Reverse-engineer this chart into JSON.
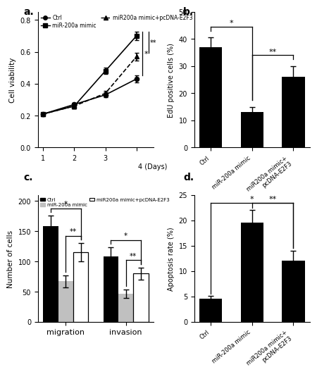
{
  "a": {
    "days": [
      1,
      2,
      3,
      4
    ],
    "ctrl": [
      0.21,
      0.27,
      0.33,
      0.43
    ],
    "ctrl_err": [
      0.01,
      0.01,
      0.015,
      0.02
    ],
    "mimic": [
      0.21,
      0.26,
      0.48,
      0.7
    ],
    "mimic_err": [
      0.01,
      0.015,
      0.02,
      0.025
    ],
    "combo": [
      0.21,
      0.26,
      0.34,
      0.57
    ],
    "combo_err": [
      0.01,
      0.015,
      0.015,
      0.025
    ],
    "ylabel": "Cell viability",
    "xlabel": "(Days)",
    "ylim": [
      0.0,
      0.85
    ],
    "yticks": [
      0.0,
      0.2,
      0.4,
      0.6,
      0.8
    ],
    "legend_ctrl": "Ctrl",
    "legend_mimic": "miR-200a mimic",
    "legend_combo": "miR200a mimic+pcDNA-E2F3"
  },
  "b": {
    "categories": [
      "Ctrl",
      "miR-200a mimic",
      "miR200a mimic+\npcDNA-E2F3"
    ],
    "values": [
      37,
      13,
      26
    ],
    "errors": [
      3.5,
      2.0,
      4.0
    ],
    "ylabel": "EdU positive cells (%)",
    "ylim": [
      0,
      50
    ],
    "yticks": [
      0,
      10,
      20,
      30,
      40,
      50
    ]
  },
  "c": {
    "groups": [
      "migration",
      "invasion"
    ],
    "ctrl": [
      158,
      108
    ],
    "ctrl_err": [
      18,
      15
    ],
    "mimic": [
      67,
      46
    ],
    "mimic_err": [
      10,
      7
    ],
    "combo": [
      115,
      80
    ],
    "combo_err": [
      15,
      10
    ],
    "ylabel": "Number of cells",
    "ylim": [
      0,
      210
    ],
    "yticks": [
      0,
      50,
      100,
      150,
      200
    ],
    "legend_ctrl": "Ctrl",
    "legend_mimic": "miR-200a mimic",
    "legend_combo": "miR200a mimic+pcDNA-E2F3"
  },
  "d": {
    "categories": [
      "Ctrl",
      "miR-200a mimic",
      "miR200a mimic+\npcDNA-E2F3"
    ],
    "values": [
      4.5,
      19.5,
      12
    ],
    "errors": [
      0.6,
      2.5,
      2.0
    ],
    "ylabel": "Apoptosis rate (%)",
    "ylim": [
      0,
      25
    ],
    "yticks": [
      0,
      5,
      10,
      15,
      20,
      25
    ]
  },
  "panel_labels": [
    "a.",
    "b.",
    "c.",
    "d."
  ],
  "bg": "#ffffff"
}
